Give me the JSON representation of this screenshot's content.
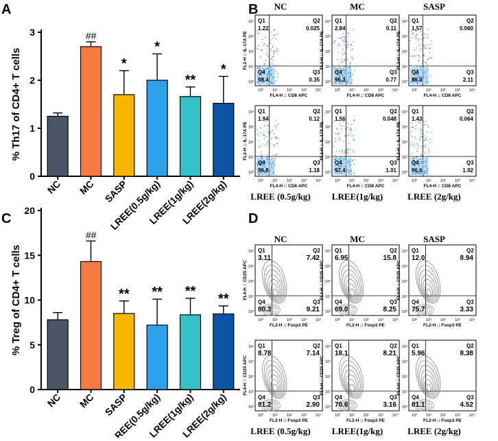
{
  "panels": {
    "a": "A",
    "b": "B",
    "c": "C",
    "d": "D"
  },
  "chart_data": [
    {
      "type": "bar",
      "panel": "A",
      "title": "",
      "xlabel": "",
      "ylabel": "% Th17 of CD4+ T cells",
      "ylim": [
        0,
        3
      ],
      "yticks": [
        "0",
        "1",
        "2",
        "3"
      ],
      "categories": [
        "NC",
        "MC",
        "SASP",
        "LREE(0.5g/kg)",
        "LREE(1g/kg)",
        "LREE(2g/kg)"
      ],
      "values": [
        1.25,
        2.7,
        1.7,
        2.0,
        1.66,
        1.52
      ],
      "errors": [
        0.07,
        0.1,
        0.5,
        0.55,
        0.2,
        0.56
      ],
      "annotations": [
        "",
        "##",
        "*",
        "*",
        "**",
        "*"
      ],
      "colors": [
        "#4a5568",
        "#f47a44",
        "#f5b700",
        "#2fa0ea",
        "#33c2c6",
        "#0b56a4"
      ]
    },
    {
      "type": "bar",
      "panel": "C",
      "title": "",
      "xlabel": "",
      "ylabel": "% Treg of CD4+ T cells",
      "ylim": [
        0,
        20
      ],
      "yticks": [
        "0",
        "5",
        "10",
        "15",
        "20"
      ],
      "categories": [
        "NC",
        "MC",
        "SASP",
        "LREE(0.5g/kg)",
        "LREE(1g/kg)",
        "LREE(2g/kg)"
      ],
      "values": [
        7.8,
        14.3,
        8.5,
        7.2,
        8.35,
        8.45
      ],
      "errors": [
        0.8,
        2.3,
        1.4,
        2.9,
        1.85,
        0.9
      ],
      "annotations": [
        "",
        "##",
        "**",
        "**",
        "**",
        "**"
      ],
      "colors": [
        "#4a5568",
        "#f47a44",
        "#f5b700",
        "#2fa0ea",
        "#33c2c6",
        "#0b56a4"
      ]
    }
  ],
  "flowB": {
    "col_titles": [
      "NC",
      "MC",
      "SASP"
    ],
    "row2_titles": [
      "LREE (0.5g/kg)",
      "LREE(1g/kg)",
      "LREE (2g/kg)"
    ],
    "ylabel": "FL2-H :: IL-17A PE",
    "xlabel": "FL4-H :: CD8 APC",
    "plots": [
      {
        "q1": "1.22",
        "q2": "0.025",
        "q3": "0.35",
        "q4": "98.4"
      },
      {
        "q1": "2.84",
        "q2": "0.11",
        "q3": "0.77",
        "q4": "96.3"
      },
      {
        "q1": "1.57",
        "q2": "0.060",
        "q3": "2.11",
        "q4": "96.3"
      },
      {
        "q1": "1.94",
        "q2": "0.12",
        "q3": "1.18",
        "q4": "96.8"
      },
      {
        "q1": "1.56",
        "q2": "0.048",
        "q3": "1.01",
        "q4": "97.4"
      },
      {
        "q1": "1.43",
        "q2": "0.064",
        "q3": "1.92",
        "q4": "96.6"
      }
    ]
  },
  "flowD": {
    "col_titles": [
      "NC",
      "MC",
      "SASP"
    ],
    "row2_titles": [
      "LREE (0.5g/kg)",
      "LREE(1g/kg)",
      "LREE (2g/kg)"
    ],
    "ylabel": "FL4-H :: CD25 APC",
    "xlabel": "FL2-H :: Foxp3 PE",
    "plots": [
      {
        "q1": "3.11",
        "q2": "7.42",
        "q3": "9.21",
        "q4": "80.3"
      },
      {
        "q1": "6.95",
        "q2": "15.8",
        "q3": "8.25",
        "q4": "69.0"
      },
      {
        "q1": "12.0",
        "q2": "8.94",
        "q3": "3.33",
        "q4": "75.7"
      },
      {
        "q1": "8.78",
        "q2": "7.14",
        "q3": "2.90",
        "q4": "81.2"
      },
      {
        "q1": "18.1",
        "q2": "8.21",
        "q3": "3.16",
        "q4": "70.6"
      },
      {
        "q1": "5.96",
        "q2": "8.38",
        "q3": "4.52",
        "q4": "81.1"
      }
    ]
  },
  "quadrant_labels": [
    "Q1",
    "Q2",
    "Q3",
    "Q4"
  ],
  "log_ticks": [
    "10⁰",
    "10¹",
    "10²",
    "10³",
    "10⁴"
  ]
}
